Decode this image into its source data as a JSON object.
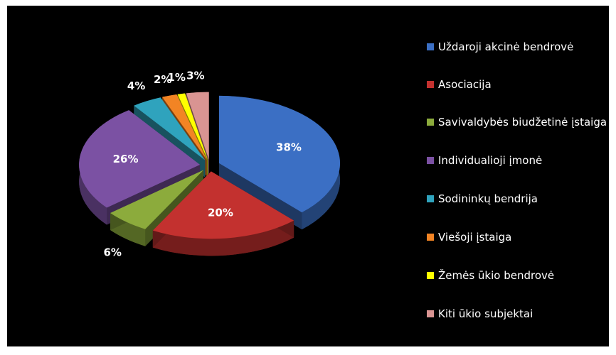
{
  "chart_data": {
    "type": "pie",
    "categories": [
      "Uždaroji akcinė bendrovė",
      "Asociacija",
      "Savivaldybės biudžetinė įstaiga",
      "Individualioji įmonė",
      "Sodininkų bendrija",
      "Viešoji įstaiga",
      "Žemės ūkio bendrovė",
      "Kiti ūkio subjektai"
    ],
    "values": [
      38,
      20,
      6,
      26,
      4,
      2,
      1,
      3
    ],
    "value_labels": [
      "38%",
      "20%",
      "6%",
      "26%",
      "4%",
      "2%",
      "1%",
      "3%"
    ],
    "colors": [
      "#3b6fc4",
      "#c3312f",
      "#8cab3c",
      "#7b51a3",
      "#2fa3bd",
      "#f28424",
      "#ffff00",
      "#d99492"
    ],
    "legend": "right"
  }
}
